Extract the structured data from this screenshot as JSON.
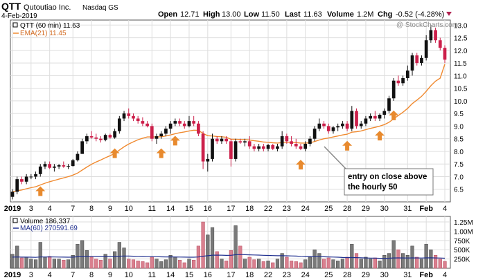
{
  "header": {
    "ticker": "QTT",
    "company": "Qutoutiao Inc.",
    "exchange": "Nasdaq GS",
    "date": "4-Feb-2019",
    "open_label": "Open",
    "open": "12.71",
    "high_label": "High",
    "high": "13.00",
    "low_label": "Low",
    "low": "11.50",
    "last_label": "Last",
    "last": "11.63",
    "volume_label": "Volume",
    "volume": "1.2M",
    "chg_label": "Chg",
    "chg": "-0.52 (-4.28%)",
    "watermark": "@ StockCharts.com"
  },
  "legend": {
    "price": "QTT (60 min) 11.63",
    "ema": "EMA(21) 11.45",
    "volume": "Volume 186,337",
    "ma": "MA(60) 270591.69"
  },
  "annotation": {
    "line1": "entry on close above",
    "line2": "the hourly 50"
  },
  "colors": {
    "up": "#111111",
    "down": "#cc1f4a",
    "ema": "#f08a30",
    "ma": "#1f2f8f",
    "arrow": "#e88a2e",
    "vol_up": "#7a7a7a",
    "vol_down": "#d9808f",
    "grid": "#dddddd"
  },
  "chart_data": [
    {
      "type": "candlestick",
      "series_name": "QTT (60 min)",
      "x_labels": [
        "2019",
        "3",
        "4",
        "7",
        "8",
        "9",
        "10",
        "11",
        "14",
        "15",
        "16",
        "17",
        "18",
        "22",
        "23",
        "24",
        "25",
        "28",
        "29",
        "30",
        "31",
        "Feb",
        "4"
      ],
      "ylim": [
        6.0,
        13.2
      ],
      "yticks": [
        6.5,
        7.0,
        7.5,
        8.0,
        8.5,
        9.0,
        9.5,
        10.0,
        10.5,
        11.0,
        11.5,
        12.0,
        12.5,
        13.0
      ],
      "last_price": 11.63,
      "ohlc": [
        [
          6.2,
          6.5,
          6.1,
          6.4
        ],
        [
          6.4,
          7.0,
          6.3,
          6.9
        ],
        [
          6.9,
          7.0,
          6.7,
          6.8
        ],
        [
          6.8,
          7.1,
          6.7,
          7.0
        ],
        [
          7.0,
          7.1,
          6.9,
          7.0
        ],
        [
          7.0,
          7.2,
          6.9,
          7.1
        ],
        [
          7.1,
          7.5,
          7.0,
          7.4
        ],
        [
          7.4,
          7.6,
          7.3,
          7.5
        ],
        [
          7.5,
          7.6,
          7.3,
          7.35
        ],
        [
          7.35,
          7.5,
          7.2,
          7.4
        ],
        [
          7.4,
          7.5,
          7.3,
          7.45
        ],
        [
          7.45,
          7.6,
          7.35,
          7.4
        ],
        [
          7.4,
          7.5,
          7.3,
          7.42
        ],
        [
          7.42,
          7.7,
          7.4,
          7.65
        ],
        [
          7.65,
          8.0,
          7.6,
          7.9
        ],
        [
          7.9,
          8.5,
          7.9,
          8.4
        ],
        [
          8.4,
          8.7,
          8.3,
          8.6
        ],
        [
          8.6,
          8.8,
          8.5,
          8.55
        ],
        [
          8.55,
          8.7,
          8.4,
          8.5
        ],
        [
          8.5,
          8.6,
          8.35,
          8.45
        ],
        [
          8.45,
          8.7,
          8.4,
          8.65
        ],
        [
          8.65,
          8.7,
          8.5,
          8.55
        ],
        [
          8.55,
          8.9,
          8.5,
          8.8
        ],
        [
          8.8,
          9.4,
          8.7,
          9.3
        ],
        [
          9.3,
          9.6,
          9.2,
          9.5
        ],
        [
          9.5,
          9.7,
          9.3,
          9.4
        ],
        [
          9.4,
          9.5,
          9.2,
          9.3
        ],
        [
          9.3,
          9.4,
          9.1,
          9.2
        ],
        [
          9.2,
          9.35,
          9.0,
          9.1
        ],
        [
          9.1,
          9.2,
          8.95,
          9.0
        ],
        [
          9.0,
          9.1,
          8.4,
          8.5
        ],
        [
          8.5,
          8.7,
          8.3,
          8.6
        ],
        [
          8.6,
          8.8,
          8.5,
          8.7
        ],
        [
          8.7,
          9.0,
          8.6,
          8.9
        ],
        [
          8.9,
          9.2,
          8.7,
          9.1
        ],
        [
          9.1,
          9.3,
          9.0,
          9.2
        ],
        [
          9.2,
          9.3,
          9.0,
          9.1
        ],
        [
          9.1,
          9.2,
          8.9,
          9.0
        ],
        [
          9.0,
          9.4,
          8.95,
          9.2
        ],
        [
          9.2,
          9.4,
          9.0,
          9.1
        ],
        [
          9.1,
          9.2,
          8.6,
          8.7
        ],
        [
          8.7,
          8.8,
          7.3,
          7.6
        ],
        [
          7.6,
          7.9,
          7.2,
          7.7
        ],
        [
          7.7,
          8.7,
          7.6,
          8.5
        ],
        [
          8.5,
          8.6,
          8.3,
          8.4
        ],
        [
          8.4,
          8.6,
          8.3,
          8.5
        ],
        [
          8.5,
          8.6,
          8.3,
          8.4
        ],
        [
          8.4,
          8.5,
          7.4,
          7.7
        ],
        [
          7.7,
          8.5,
          7.6,
          8.4
        ],
        [
          8.4,
          8.5,
          8.3,
          8.35
        ],
        [
          8.35,
          8.5,
          8.2,
          8.4
        ],
        [
          8.4,
          8.6,
          8.1,
          8.2
        ],
        [
          8.2,
          8.3,
          8.0,
          8.1
        ],
        [
          8.1,
          8.3,
          8.0,
          8.2
        ],
        [
          8.2,
          8.3,
          8.0,
          8.1
        ],
        [
          8.1,
          8.3,
          8.0,
          8.25
        ],
        [
          8.25,
          8.3,
          8.05,
          8.1
        ],
        [
          8.1,
          8.3,
          8.0,
          8.2
        ],
        [
          8.2,
          8.8,
          8.1,
          8.6
        ],
        [
          8.6,
          8.7,
          8.3,
          8.4
        ],
        [
          8.4,
          8.6,
          8.2,
          8.3
        ],
        [
          8.3,
          8.5,
          8.1,
          8.2
        ],
        [
          8.2,
          8.3,
          8.05,
          8.1
        ],
        [
          8.1,
          8.4,
          8.0,
          8.3
        ],
        [
          8.3,
          8.6,
          8.2,
          8.5
        ],
        [
          8.5,
          9.0,
          8.4,
          8.9
        ],
        [
          8.9,
          9.3,
          8.8,
          9.1
        ],
        [
          9.1,
          9.2,
          8.9,
          9.0
        ],
        [
          9.0,
          9.1,
          8.7,
          8.8
        ],
        [
          8.8,
          9.0,
          8.7,
          8.95
        ],
        [
          8.95,
          9.1,
          8.8,
          9.0
        ],
        [
          9.0,
          9.2,
          8.9,
          9.1
        ],
        [
          9.1,
          9.2,
          8.8,
          8.9
        ],
        [
          8.9,
          9.8,
          8.8,
          9.6
        ],
        [
          9.6,
          9.7,
          8.9,
          9.0
        ],
        [
          9.0,
          9.2,
          8.9,
          9.1
        ],
        [
          9.1,
          9.4,
          9.0,
          9.3
        ],
        [
          9.3,
          9.5,
          9.2,
          9.4
        ],
        [
          9.4,
          9.6,
          9.2,
          9.3
        ],
        [
          9.3,
          9.5,
          9.2,
          9.45
        ],
        [
          9.45,
          9.7,
          9.3,
          9.6
        ],
        [
          9.6,
          10.2,
          9.5,
          10.1
        ],
        [
          10.1,
          10.9,
          10.0,
          10.8
        ],
        [
          10.8,
          11.0,
          10.6,
          10.7
        ],
        [
          10.7,
          11.0,
          10.6,
          10.9
        ],
        [
          10.9,
          11.4,
          10.8,
          11.2
        ],
        [
          11.2,
          11.9,
          11.0,
          11.8
        ],
        [
          11.8,
          11.9,
          11.4,
          11.5
        ],
        [
          11.5,
          11.8,
          11.4,
          11.7
        ],
        [
          11.7,
          12.6,
          11.6,
          12.4
        ],
        [
          12.4,
          13.0,
          12.3,
          12.8
        ],
        [
          12.8,
          12.9,
          12.3,
          12.4
        ],
        [
          12.4,
          12.5,
          12.0,
          12.1
        ],
        [
          12.1,
          12.2,
          11.5,
          11.63
        ]
      ]
    },
    {
      "type": "line",
      "series_name": "EMA(21)",
      "ylim": [
        6.0,
        13.2
      ],
      "values": [
        6.4,
        6.44,
        6.47,
        6.52,
        6.56,
        6.6,
        6.67,
        6.74,
        6.8,
        6.85,
        6.9,
        6.95,
        7.0,
        7.06,
        7.14,
        7.26,
        7.38,
        7.49,
        7.58,
        7.66,
        7.75,
        7.83,
        7.92,
        8.05,
        8.18,
        8.29,
        8.38,
        8.46,
        8.52,
        8.57,
        8.57,
        8.57,
        8.58,
        8.61,
        8.65,
        8.7,
        8.74,
        8.77,
        8.81,
        8.84,
        8.83,
        8.71,
        8.62,
        8.61,
        8.59,
        8.58,
        8.56,
        8.48,
        8.48,
        8.47,
        8.47,
        8.45,
        8.42,
        8.4,
        8.37,
        8.36,
        8.34,
        8.33,
        8.35,
        8.36,
        8.36,
        8.35,
        8.33,
        8.33,
        8.34,
        8.39,
        8.45,
        8.5,
        8.53,
        8.57,
        8.61,
        8.65,
        8.68,
        8.76,
        8.78,
        8.81,
        8.86,
        8.91,
        8.95,
        9.0,
        9.06,
        9.15,
        9.29,
        9.42,
        9.55,
        9.7,
        9.89,
        10.03,
        10.18,
        10.38,
        10.6,
        10.78,
        10.9,
        11.45
      ]
    },
    {
      "type": "bar",
      "series_name": "Volume",
      "ylim": [
        0,
        1400000
      ],
      "yticks": [
        250000,
        500000,
        750000,
        1000000,
        1250000
      ],
      "ytick_labels": [
        "250K",
        "500K",
        "750K",
        "1.00M",
        "1.25M"
      ],
      "last_volume": 186337,
      "values": [
        380000,
        600000,
        280000,
        300000,
        250000,
        230000,
        700000,
        300000,
        320000,
        250000,
        250000,
        220000,
        230000,
        350000,
        650000,
        750000,
        480000,
        300000,
        250000,
        220000,
        380000,
        250000,
        450000,
        700000,
        550000,
        250000,
        230000,
        200000,
        180000,
        150000,
        300000,
        250000,
        180000,
        230000,
        350000,
        300000,
        220000,
        150000,
        250000,
        220000,
        600000,
        1250000,
        900000,
        1100000,
        450000,
        250000,
        200000,
        480000,
        1150000,
        600000,
        250000,
        300000,
        230000,
        250000,
        180000,
        200000,
        150000,
        250000,
        400000,
        300000,
        200000,
        180000,
        150000,
        230000,
        300000,
        500000,
        400000,
        250000,
        280000,
        230000,
        200000,
        250000,
        300000,
        650000,
        400000,
        250000,
        300000,
        250000,
        280000,
        200000,
        350000,
        400000,
        750000,
        500000,
        400000,
        350000,
        600000,
        300000,
        250000,
        650000,
        500000,
        350000,
        250000,
        186337
      ]
    },
    {
      "type": "line",
      "series_name": "MA(60)",
      "ylim": [
        0,
        1400000
      ],
      "values": [
        300000,
        305000,
        300000,
        300000,
        298000,
        295000,
        305000,
        305000,
        306000,
        305000,
        303000,
        300000,
        298000,
        300000,
        310000,
        320000,
        323000,
        322000,
        320000,
        318000,
        318000,
        317000,
        318000,
        325000,
        330000,
        328000,
        325000,
        322000,
        318000,
        314000,
        313000,
        311000,
        308000,
        306000,
        306000,
        305000,
        303000,
        300000,
        299000,
        298000,
        305000,
        325000,
        337000,
        352000,
        355000,
        352000,
        348000,
        350000,
        365000,
        370000,
        365000,
        362000,
        358000,
        355000,
        350000,
        346000,
        341000,
        338000,
        338000,
        336000,
        332000,
        328000,
        322000,
        318000,
        315000,
        314000,
        312000,
        309000,
        307000,
        303000,
        298000,
        292000,
        288000,
        290000,
        287000,
        282000,
        278000,
        274000,
        272000,
        268000,
        268000,
        270000,
        278000,
        280000,
        278000,
        276000,
        280000,
        279000,
        276000,
        280000,
        282000,
        279000,
        276000,
        270592
      ]
    }
  ]
}
